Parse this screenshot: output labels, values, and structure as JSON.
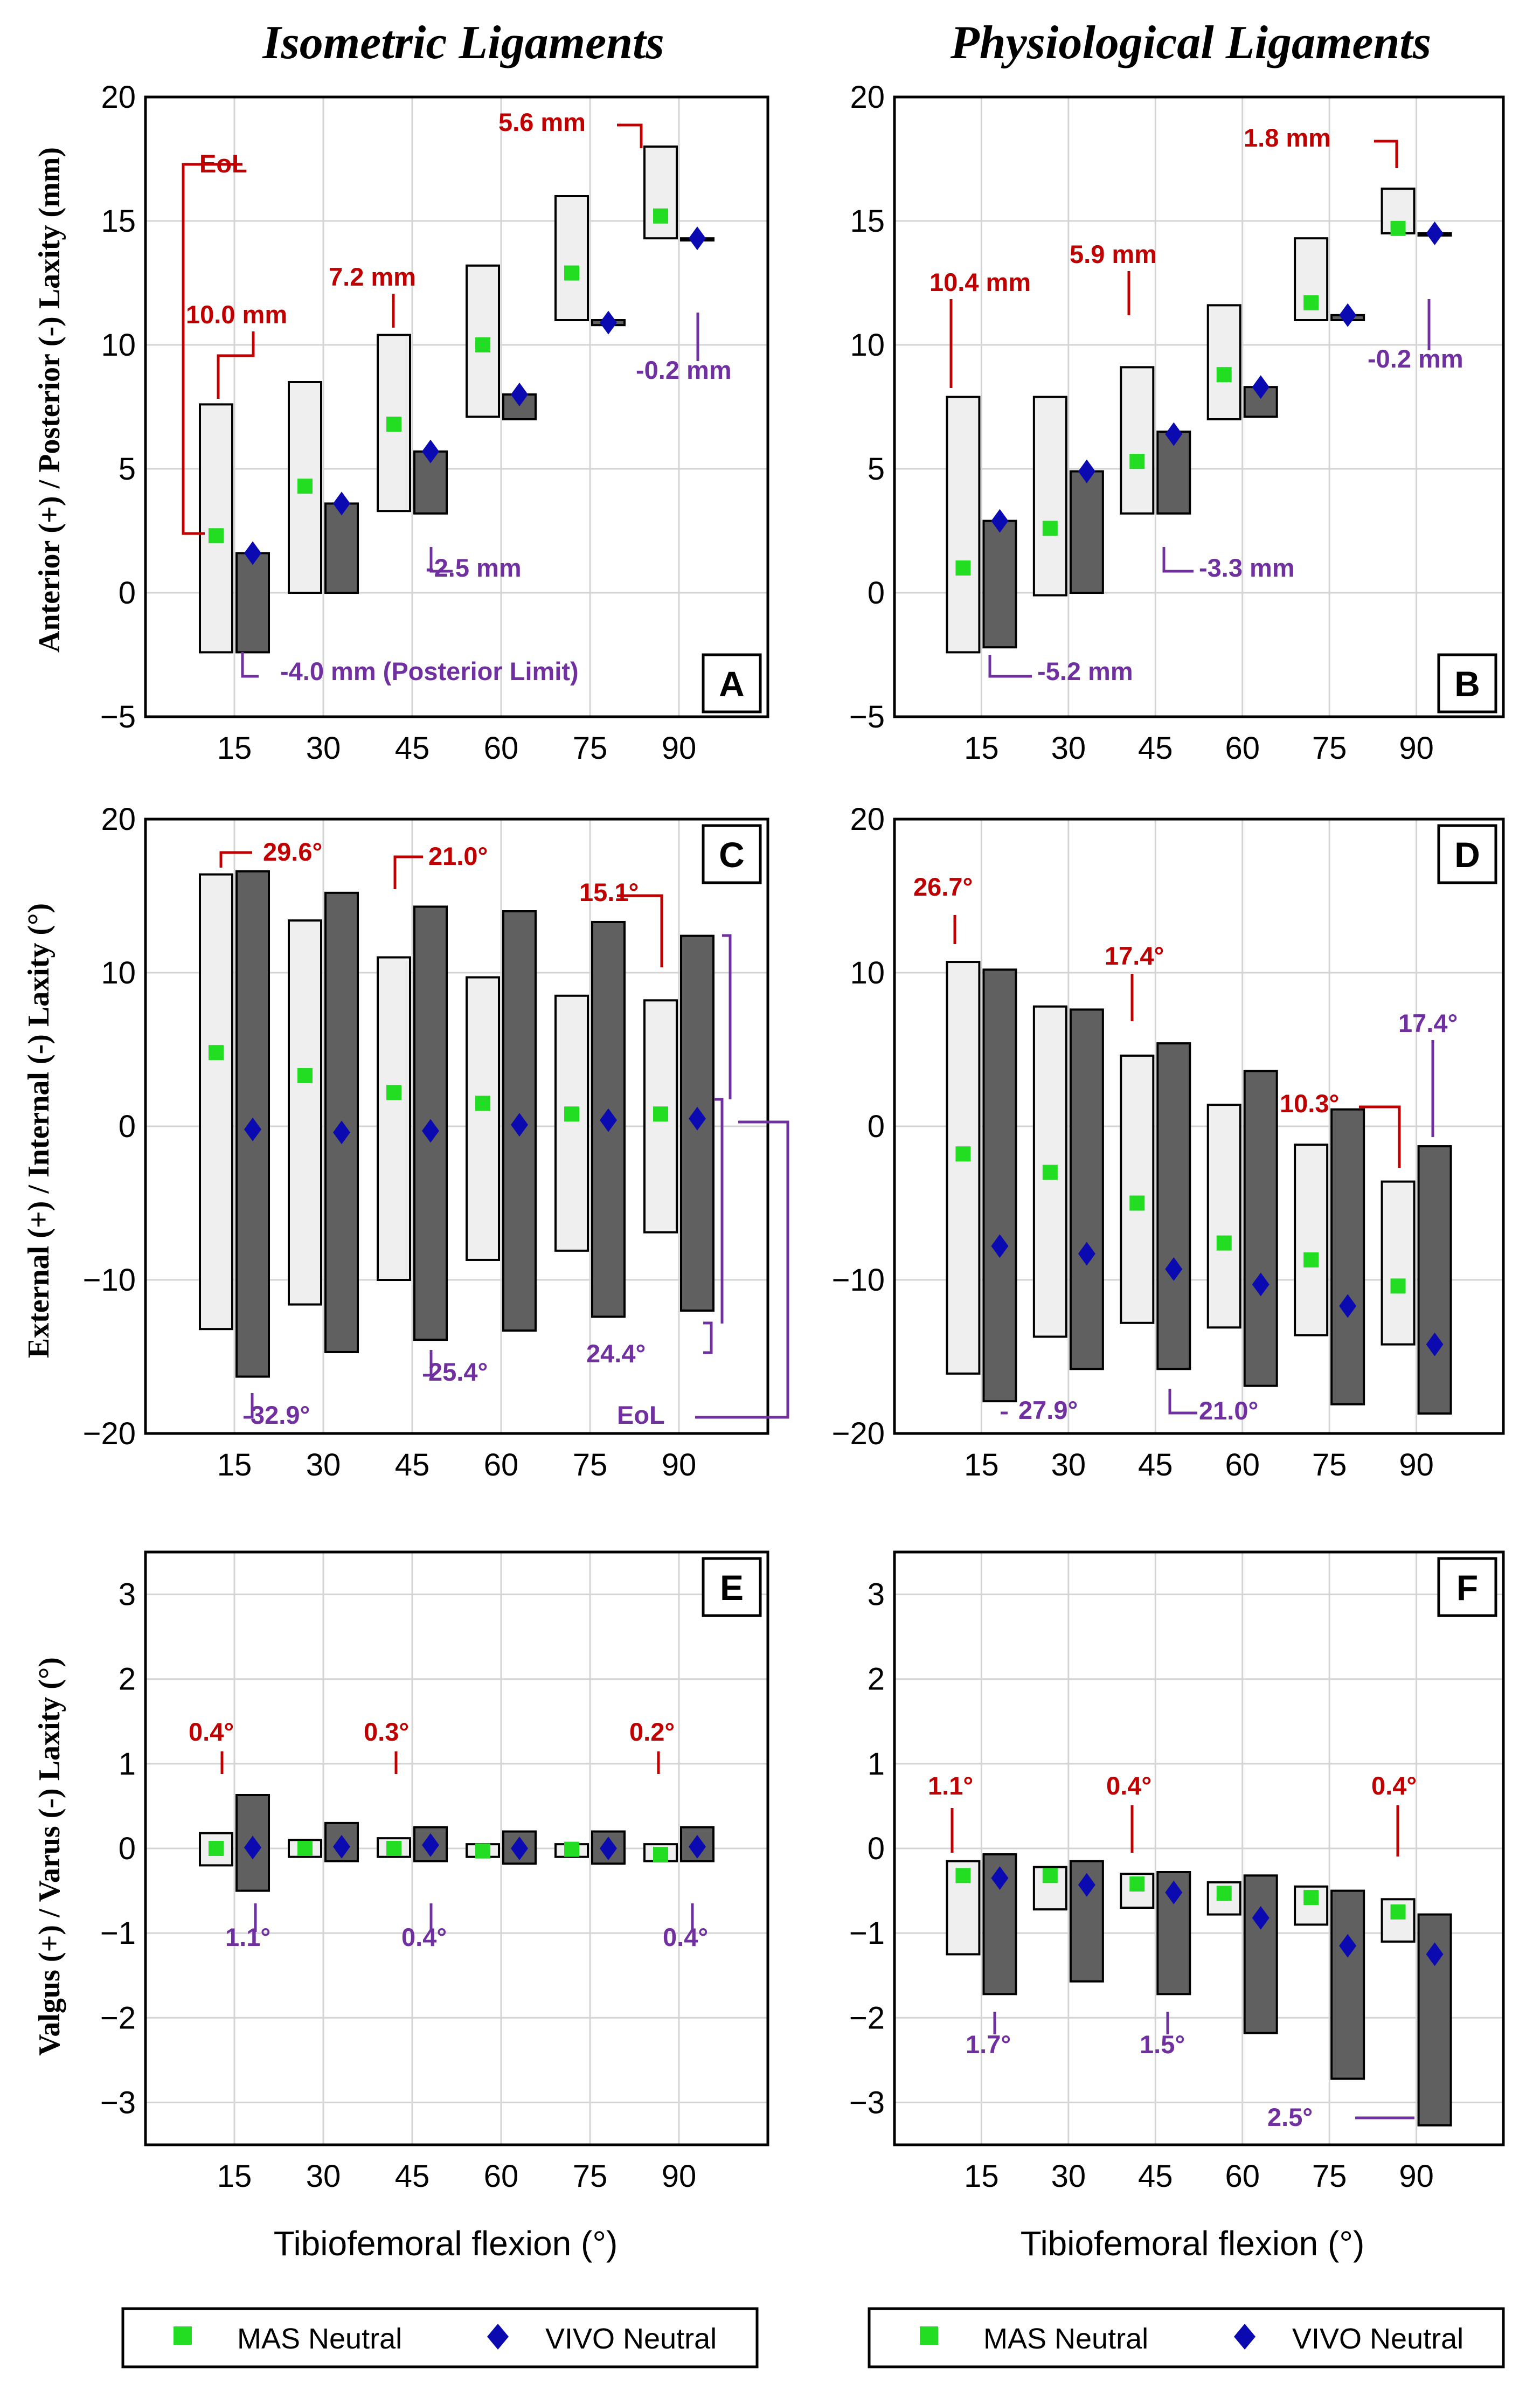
{
  "column_titles": [
    "Isometric Ligaments",
    "Physiological Ligaments"
  ],
  "legend": {
    "mas": "MAS Neutral",
    "vivo": "VIVO Neutral"
  },
  "colors": {
    "mas_box": "#efefef",
    "vivo_box": "#606060",
    "mas_marker": "#22dd22",
    "vivo_marker": "#0a0ab0",
    "red_annot": "#c00000",
    "purple_annot": "#7030a0",
    "grid": "#d4d4d4"
  },
  "chart_data": [
    {
      "panel": "A",
      "type": "range-bar",
      "ylabel": "Anterior (+) / Posterior (-) Laxity (mm)",
      "xlabel": "",
      "categories": [
        "15",
        "30",
        "45",
        "60",
        "75",
        "90"
      ],
      "ylim": [
        -5,
        20
      ],
      "yticks": [
        -5,
        0,
        5,
        10,
        15,
        20
      ],
      "ytick_labels": [
        "−5",
        "0",
        "5",
        "10",
        "15",
        "20"
      ],
      "mas": {
        "low": [
          -2.4,
          0,
          3.3,
          7.1,
          11.0,
          14.3
        ],
        "high": [
          7.6,
          8.5,
          10.4,
          13.2,
          16.0,
          18.0
        ],
        "neutral": [
          2.3,
          4.3,
          6.8,
          10.0,
          12.9,
          15.2
        ]
      },
      "vivo": {
        "low": [
          -2.4,
          0,
          3.2,
          7.0,
          10.8,
          14.3
        ],
        "high": [
          1.6,
          3.6,
          5.7,
          8.0,
          11.0,
          14.3
        ],
        "neutral": [
          1.6,
          3.6,
          5.7,
          8.0,
          10.9,
          14.3
        ]
      },
      "annotations": [
        {
          "text": "EoL",
          "color": "red"
        },
        {
          "text": "10.0 mm",
          "color": "red"
        },
        {
          "text": "7.2 mm",
          "color": "red"
        },
        {
          "text": "5.6 mm",
          "color": "red"
        },
        {
          "text": "-4.0 mm (Posterior Limit)",
          "color": "purple"
        },
        {
          "text": "-2.5 mm",
          "color": "purple"
        },
        {
          "text": "-0.2 mm",
          "color": "purple"
        }
      ]
    },
    {
      "panel": "B",
      "type": "range-bar",
      "ylabel": "",
      "xlabel": "",
      "categories": [
        "15",
        "30",
        "45",
        "60",
        "75",
        "90"
      ],
      "ylim": [
        -5,
        20
      ],
      "yticks": [
        -5,
        0,
        5,
        10,
        15,
        20
      ],
      "ytick_labels": [
        "−5",
        "0",
        "5",
        "10",
        "15",
        "20"
      ],
      "mas": {
        "low": [
          -2.4,
          -0.1,
          3.2,
          7.0,
          11.0,
          14.5
        ],
        "high": [
          7.9,
          7.9,
          9.1,
          11.6,
          14.3,
          16.3
        ],
        "neutral": [
          1.0,
          2.6,
          5.3,
          8.8,
          11.7,
          14.7
        ]
      },
      "vivo": {
        "low": [
          -2.2,
          0,
          3.2,
          7.1,
          11.0,
          14.5
        ],
        "high": [
          2.9,
          4.9,
          6.5,
          8.3,
          11.2,
          14.5
        ],
        "neutral": [
          2.9,
          4.9,
          6.4,
          8.3,
          11.2,
          14.5
        ]
      },
      "annotations": [
        {
          "text": "10.4 mm",
          "color": "red"
        },
        {
          "text": "5.9 mm",
          "color": "red"
        },
        {
          "text": "1.8 mm",
          "color": "red"
        },
        {
          "text": "-5.2 mm",
          "color": "purple"
        },
        {
          "text": "-3.3 mm",
          "color": "purple"
        },
        {
          "text": "-0.2 mm",
          "color": "purple"
        }
      ]
    },
    {
      "panel": "C",
      "type": "range-bar",
      "ylabel": "External (+) / Internal (-) Laxity (°)",
      "xlabel": "",
      "categories": [
        "15",
        "30",
        "45",
        "60",
        "75",
        "90"
      ],
      "ylim": [
        -20,
        20
      ],
      "yticks": [
        -20,
        -10,
        0,
        10,
        20
      ],
      "ytick_labels": [
        "−20",
        "−10",
        "0",
        "10",
        "20"
      ],
      "mas": {
        "low": [
          -13.2,
          -11.6,
          -10.0,
          -8.7,
          -8.1,
          -6.9
        ],
        "high": [
          16.4,
          13.4,
          11.0,
          9.7,
          8.5,
          8.2
        ],
        "neutral": [
          4.8,
          3.3,
          2.2,
          1.5,
          0.8,
          0.8
        ]
      },
      "vivo": {
        "low": [
          -16.3,
          -14.7,
          -13.9,
          -13.3,
          -12.4,
          -12.0
        ],
        "high": [
          16.6,
          15.2,
          14.3,
          14.0,
          13.3,
          12.4
        ],
        "neutral": [
          -0.2,
          -0.4,
          -0.3,
          0.1,
          0.4,
          0.5
        ]
      },
      "annotations": [
        {
          "text": "29.6°",
          "color": "red"
        },
        {
          "text": "21.0°",
          "color": "red"
        },
        {
          "text": "15.1°",
          "color": "red"
        },
        {
          "text": "32.9°",
          "color": "purple"
        },
        {
          "text": "25.4°",
          "color": "purple"
        },
        {
          "text": "24.4°",
          "color": "purple"
        },
        {
          "text": "EoL",
          "color": "purple"
        }
      ]
    },
    {
      "panel": "D",
      "type": "range-bar",
      "ylabel": "",
      "xlabel": "",
      "categories": [
        "15",
        "30",
        "45",
        "60",
        "75",
        "90"
      ],
      "ylim": [
        -20,
        20
      ],
      "yticks": [
        -20,
        -10,
        0,
        10,
        20
      ],
      "ytick_labels": [
        "−20",
        "−10",
        "0",
        "10",
        "20"
      ],
      "mas": {
        "low": [
          -16.1,
          -13.7,
          -12.8,
          -13.1,
          -13.6,
          -14.2
        ],
        "high": [
          10.7,
          7.8,
          4.6,
          1.4,
          -1.2,
          -3.6
        ],
        "neutral": [
          -1.8,
          -3.0,
          -5.0,
          -7.6,
          -8.7,
          -10.4
        ]
      },
      "vivo": {
        "low": [
          -17.9,
          -15.8,
          -15.8,
          -16.9,
          -18.1,
          -18.7
        ],
        "high": [
          10.2,
          7.6,
          5.4,
          3.6,
          1.1,
          -1.3
        ],
        "neutral": [
          -7.8,
          -8.3,
          -9.3,
          -10.3,
          -11.7,
          -14.2
        ]
      },
      "annotations": [
        {
          "text": "26.7°",
          "color": "red"
        },
        {
          "text": "17.4°",
          "color": "red"
        },
        {
          "text": "10.3°",
          "color": "red"
        },
        {
          "text": "27.9°",
          "color": "purple"
        },
        {
          "text": "21.0°",
          "color": "purple"
        },
        {
          "text": "17.4°",
          "color": "purple"
        }
      ]
    },
    {
      "panel": "E",
      "type": "range-bar",
      "ylabel": "Valgus (+) / Varus (-) Laxity (°)",
      "xlabel": "Tibiofemoral flexion (°)",
      "categories": [
        "15",
        "30",
        "45",
        "60",
        "75",
        "90"
      ],
      "ylim": [
        -3.5,
        3.5
      ],
      "yticks": [
        -3,
        -2,
        -1,
        0,
        1,
        2,
        3
      ],
      "ytick_labels": [
        "−3",
        "−2",
        "−1",
        "0",
        "1",
        "2",
        "3"
      ],
      "mas": {
        "low": [
          -0.2,
          -0.1,
          -0.1,
          -0.1,
          -0.1,
          -0.15
        ],
        "high": [
          0.18,
          0.1,
          0.12,
          0.05,
          0.05,
          0.05
        ],
        "neutral": [
          0,
          0,
          0,
          -0.03,
          -0.01,
          -0.07
        ]
      },
      "vivo": {
        "low": [
          -0.5,
          -0.15,
          -0.15,
          -0.18,
          -0.18,
          -0.15
        ],
        "high": [
          0.63,
          0.3,
          0.25,
          0.2,
          0.2,
          0.25
        ],
        "neutral": [
          0.01,
          0.02,
          0.04,
          0,
          0,
          0.02
        ]
      },
      "annotations": [
        {
          "text": "0.4°",
          "color": "red"
        },
        {
          "text": "0.3°",
          "color": "red"
        },
        {
          "text": "0.2°",
          "color": "red"
        },
        {
          "text": "1.1°",
          "color": "purple"
        },
        {
          "text": "0.4°",
          "color": "purple"
        },
        {
          "text": "0.4°",
          "color": "purple"
        }
      ]
    },
    {
      "panel": "F",
      "type": "range-bar",
      "ylabel": "",
      "xlabel": "Tibiofemoral flexion (°)",
      "categories": [
        "15",
        "30",
        "45",
        "60",
        "75",
        "90"
      ],
      "ylim": [
        -3.5,
        3.5
      ],
      "yticks": [
        -3,
        -2,
        -1,
        0,
        1,
        2,
        3
      ],
      "ytick_labels": [
        "−3",
        "−2",
        "−1",
        "0",
        "1",
        "2",
        "3"
      ],
      "mas": {
        "low": [
          -1.25,
          -0.72,
          -0.7,
          -0.78,
          -0.9,
          -1.1
        ],
        "high": [
          -0.15,
          -0.22,
          -0.3,
          -0.4,
          -0.45,
          -0.6
        ],
        "neutral": [
          -0.32,
          -0.32,
          -0.42,
          -0.53,
          -0.58,
          -0.75
        ]
      },
      "vivo": {
        "low": [
          -1.72,
          -1.57,
          -1.72,
          -2.18,
          -2.72,
          -3.27
        ],
        "high": [
          -0.07,
          -0.15,
          -0.28,
          -0.32,
          -0.5,
          -0.78
        ],
        "neutral": [
          -0.35,
          -0.43,
          -0.52,
          -0.82,
          -1.15,
          -1.25
        ]
      },
      "annotations": [
        {
          "text": "1.1°",
          "color": "red"
        },
        {
          "text": "0.4°",
          "color": "red"
        },
        {
          "text": "0.4°",
          "color": "red"
        },
        {
          "text": "1.7°",
          "color": "purple"
        },
        {
          "text": "1.5°",
          "color": "purple"
        },
        {
          "text": "2.5°",
          "color": "purple"
        }
      ]
    }
  ]
}
